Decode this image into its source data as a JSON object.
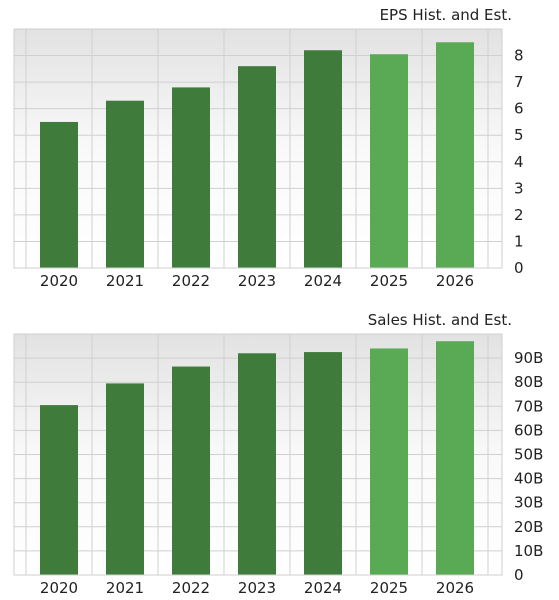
{
  "chart_data": [
    {
      "type": "bar",
      "title": "EPS Hist. and Est.",
      "categories": [
        "2020",
        "2021",
        "2022",
        "2023",
        "2024",
        "2025",
        "2026"
      ],
      "values": [
        5.5,
        6.3,
        6.8,
        7.6,
        8.2,
        8.05,
        8.5
      ],
      "estimate_from_index": 5,
      "ylim": [
        0,
        9
      ],
      "yticks": [
        0,
        1,
        2,
        3,
        4,
        5,
        6,
        7,
        8
      ],
      "ytick_labels": [
        "0",
        "1",
        "2",
        "3",
        "4",
        "5",
        "6",
        "7",
        "8"
      ],
      "grid": true,
      "colors": {
        "historical": "#3f7c3c",
        "estimate": "#5aaa55"
      }
    },
    {
      "type": "bar",
      "title": "Sales Hist. and Est.",
      "categories": [
        "2020",
        "2021",
        "2022",
        "2023",
        "2024",
        "2025",
        "2026"
      ],
      "values": [
        70.5,
        79.5,
        86.5,
        92,
        92.5,
        94,
        97
      ],
      "estimate_from_index": 5,
      "ylim": [
        0,
        100
      ],
      "yticks": [
        0,
        10,
        20,
        30,
        40,
        50,
        60,
        70,
        80,
        90
      ],
      "ytick_labels": [
        "0",
        "10B",
        "20B",
        "30B",
        "40B",
        "50B",
        "60B",
        "70B",
        "80B",
        "90B"
      ],
      "grid": true,
      "colors": {
        "historical": "#3f7c3c",
        "estimate": "#5aaa55"
      }
    }
  ]
}
